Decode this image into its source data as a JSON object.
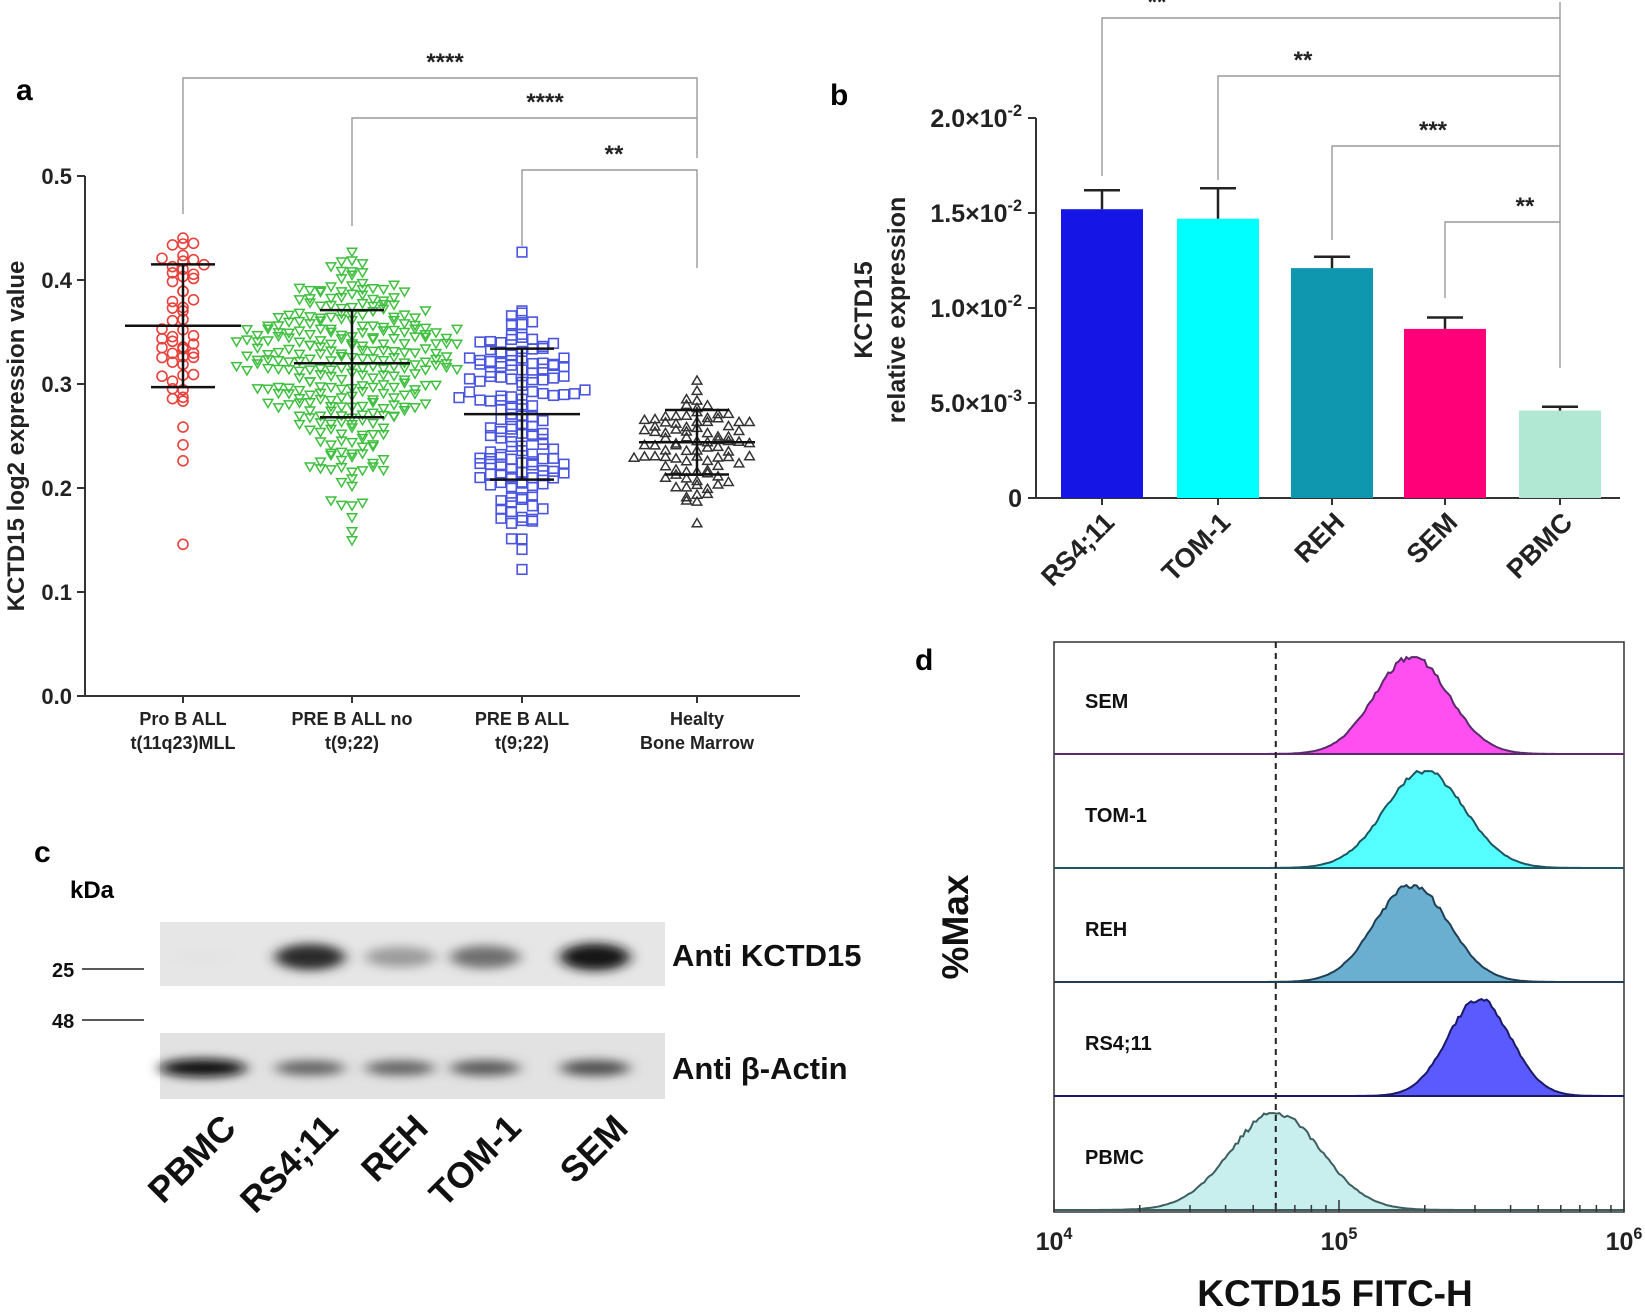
{
  "panel_labels": {
    "a": "a",
    "b": "b",
    "c": "c",
    "d": "d"
  },
  "chart_data": [
    {
      "panel": "a",
      "type": "scatter",
      "title": "",
      "xlabel": "",
      "ylabel": "KCTD15 log2 expression value",
      "ylim": [
        0,
        0.5
      ],
      "yticks": [
        "0.0",
        "0.1",
        "0.2",
        "0.3",
        "0.4",
        "0.5"
      ],
      "categories": [
        {
          "line1": "Pro B ALL",
          "line2": "t(11q23)MLL"
        },
        {
          "line1": "PRE B ALL no",
          "line2": "t(9;22)"
        },
        {
          "line1": "PRE B ALL",
          "line2": "t(9;22)"
        },
        {
          "line1": "Healty",
          "line2": "Bone Marrow"
        }
      ],
      "series": [
        {
          "name": "Pro B ALL t(11q23)MLL",
          "marker": "circle",
          "color": "#e8403a",
          "n": 55,
          "mean": 0.356,
          "sd_low": 0.297,
          "sd_high": 0.415,
          "min": 0.145,
          "max": 0.442
        },
        {
          "name": "PRE B ALL no t(9;22)",
          "marker": "triangle-down",
          "color": "#3fbf3f",
          "n": 300,
          "mean": 0.32,
          "sd_low": 0.268,
          "sd_high": 0.371,
          "min": 0.15,
          "max": 0.425
        },
        {
          "name": "PRE B ALL t(9;22)",
          "marker": "square",
          "color": "#4a55e0",
          "n": 150,
          "mean": 0.271,
          "sd_low": 0.208,
          "sd_high": 0.334,
          "min": 0.12,
          "max": 0.425
        },
        {
          "name": "Healty Bone Marrow",
          "marker": "triangle-up",
          "color": "#333333",
          "n": 90,
          "mean": 0.244,
          "sd_low": 0.213,
          "sd_high": 0.275,
          "min": 0.165,
          "max": 0.305
        }
      ],
      "significance": [
        {
          "from": 0,
          "to": 3,
          "label": "****"
        },
        {
          "from": 1,
          "to": 3,
          "label": "****"
        },
        {
          "from": 2,
          "to": 3,
          "label": "**"
        }
      ]
    },
    {
      "panel": "b",
      "type": "bar",
      "ylabel_line1": "KCTD15",
      "ylabel_line2": "relative expression",
      "ylim": [
        0,
        0.02
      ],
      "yticks": [
        {
          "value": 0,
          "mant": "0",
          "exp": ""
        },
        {
          "value": 0.005,
          "mant": "5.0×10",
          "exp": "-3"
        },
        {
          "value": 0.01,
          "mant": "1.0×10",
          "exp": "-2"
        },
        {
          "value": 0.015,
          "mant": "1.5×10",
          "exp": "-2"
        },
        {
          "value": 0.02,
          "mant": "2.0×10",
          "exp": "-2"
        }
      ],
      "categories": [
        "RS4;11",
        "TOM-1",
        "REH",
        "SEM",
        "PBMC"
      ],
      "values": [
        0.0152,
        0.0147,
        0.0121,
        0.0089,
        0.0046
      ],
      "errors": [
        0.001,
        0.0016,
        0.0006,
        0.0006,
        0.0002
      ],
      "colors": [
        "#1515e6",
        "#00ffff",
        "#0f97b0",
        "#ff0078",
        "#b0e8d4"
      ],
      "significance": [
        {
          "from": 0,
          "to": 4,
          "label": "**"
        },
        {
          "from": 1,
          "to": 4,
          "label": "**"
        },
        {
          "from": 2,
          "to": 4,
          "label": "***"
        },
        {
          "from": 3,
          "to": 4,
          "label": "**"
        }
      ]
    },
    {
      "panel": "d",
      "type": "area",
      "title": "",
      "xlabel": "KCTD15 FITC-H",
      "ylabel": "%Max",
      "xscale": "log",
      "xlim": [
        10000,
        1000000
      ],
      "xticks": [
        {
          "base": "10",
          "exp": "4"
        },
        {
          "base": "10",
          "exp": "5"
        },
        {
          "base": "10",
          "exp": "6"
        }
      ],
      "reference_line": 60000,
      "series": [
        {
          "name": "SEM",
          "peak": 180000,
          "spread": 0.13,
          "color": "#ff4ff0",
          "edge": "#5a2a6a"
        },
        {
          "name": "TOM-1",
          "peak": 200000,
          "spread": 0.14,
          "color": "#55ffff",
          "edge": "#1f5560"
        },
        {
          "name": "REH",
          "peak": 180000,
          "spread": 0.13,
          "color": "#6aaed0",
          "edge": "#1f3f55"
        },
        {
          "name": "RS4;11",
          "peak": 310000,
          "spread": 0.11,
          "color": "#5a5aff",
          "edge": "#1a1a66"
        },
        {
          "name": "PBMC",
          "peak": 60000,
          "spread": 0.16,
          "color": "#c8eeee",
          "edge": "#3f5f5f"
        }
      ]
    }
  ],
  "western_blot": {
    "unit_label": "kDa",
    "markers": [
      "25",
      "48"
    ],
    "bands": [
      {
        "label": "Anti KCTD15",
        "intensity": [
          0.03,
          0.85,
          0.35,
          0.55,
          0.95
        ]
      },
      {
        "label": "Anti β-Actin",
        "intensity": [
          1.0,
          0.6,
          0.6,
          0.65,
          0.7
        ]
      }
    ],
    "lanes": [
      "PBMC",
      "RS4;11",
      "REH",
      "TOM-1",
      "SEM"
    ]
  }
}
